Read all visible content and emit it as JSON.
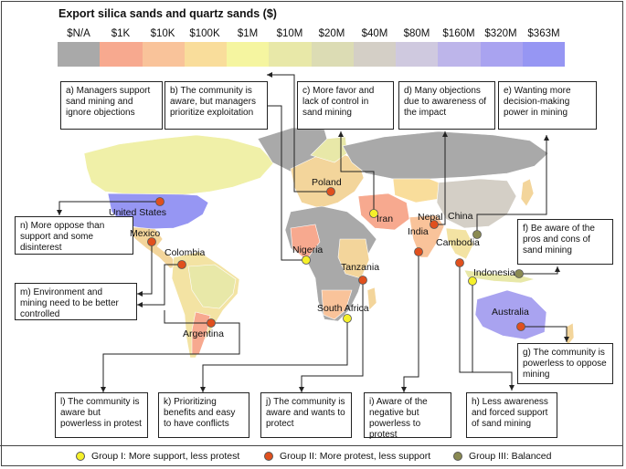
{
  "title": "Export silica sands and quartz sands ($)",
  "scale": [
    {
      "label": "$N/A",
      "color": "#a9a9a9"
    },
    {
      "label": "$1K",
      "color": "#f7a98f"
    },
    {
      "label": "$10K",
      "color": "#f9c39a"
    },
    {
      "label": "$100K",
      "color": "#f9dd9b"
    },
    {
      "label": "$1M",
      "color": "#f5f5a0"
    },
    {
      "label": "$10M",
      "color": "#e8e8a8"
    },
    {
      "label": "$20M",
      "color": "#dcdcb4"
    },
    {
      "label": "$40M",
      "color": "#d4cfc6"
    },
    {
      "label": "$80M",
      "color": "#cfc9df"
    },
    {
      "label": "$160M",
      "color": "#bdb5ea"
    },
    {
      "label": "$320M",
      "color": "#a9a3f0"
    },
    {
      "label": "$363M",
      "color": "#9696f3"
    }
  ],
  "boxes": {
    "a": "a) Managers support sand mining and ignore objections",
    "b": "b) The community is aware, but managers prioritize exploitation",
    "c": "c) More favor and lack of control in sand mining",
    "d": "d) Many objections due to awareness of the impact",
    "e": "e) Wanting more decision-making power in mining",
    "f": "f) Be aware of the pros and cons of sand mining",
    "g": "g) The community is powerless to oppose mining",
    "h": "h) Less awareness and forced support of sand mining",
    "i": "i) Aware of the negative but powerless to protest",
    "j": "j) The community is aware and wants to protect",
    "k": "k) Prioritizing benefits and easy to have conflicts",
    "l": "l) The community is aware but powerless in protest",
    "m": "m) Environment and mining need to be better controlled",
    "n": "n) More oppose than support and some disinterest"
  },
  "countries": {
    "us": "United States",
    "mexico": "Mexico",
    "colombia": "Colombia",
    "argentina": "Argentina",
    "poland": "Poland",
    "iran": "Iran",
    "nepal": "Nepal",
    "china": "China",
    "india": "India",
    "cambodia": "Cambodia",
    "nigeria": "Nigeria",
    "tanzania": "Tanzania",
    "south_africa": "South Africa",
    "indonesia": "Indonesia",
    "australia": "Australia"
  },
  "legend": {
    "g1": "Group I: More support, less protest",
    "g2": "Group II: More protest, less support",
    "g3": "Group III: Balanced"
  },
  "colors": {
    "group1": "#f5f02a",
    "group2": "#e0501e",
    "group3": "#8a8a52"
  }
}
